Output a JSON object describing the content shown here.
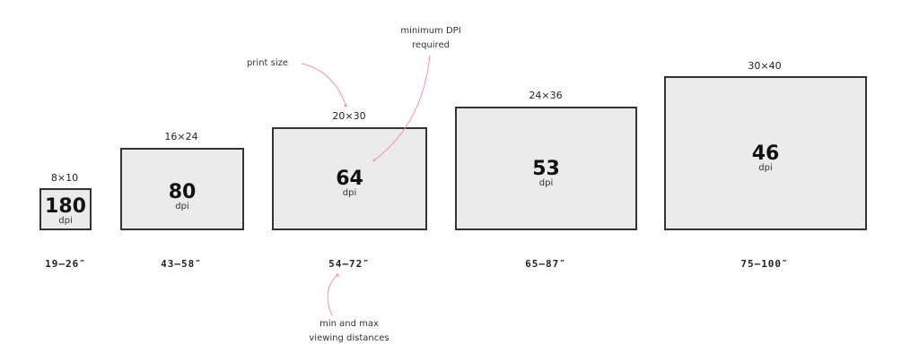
{
  "accent_color": "#f48fb1",
  "unit_label": "dpi",
  "prints": [
    {
      "size": "8×10",
      "dpi": "180",
      "distance": "19–26″"
    },
    {
      "size": "16×24",
      "dpi": "80",
      "distance": "43–58″"
    },
    {
      "size": "20×30",
      "dpi": "64",
      "distance": "54–72″"
    },
    {
      "size": "24×36",
      "dpi": "53",
      "distance": "65–87″"
    },
    {
      "size": "30×40",
      "dpi": "46",
      "distance": "75–100″"
    }
  ],
  "annotations": {
    "print_size": "print size",
    "min_dpi_line1": "minimum DPI",
    "min_dpi_line2": "required",
    "viewing_line1": "min and max",
    "viewing_line2": "viewing distances"
  }
}
